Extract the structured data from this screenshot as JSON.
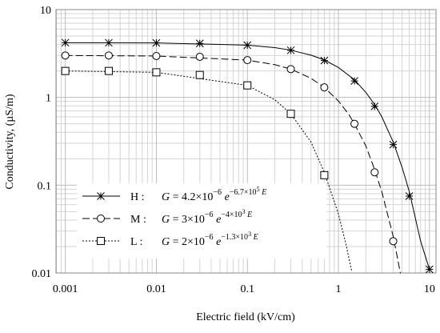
{
  "chart_data": {
    "type": "line",
    "x_label": "Electric field (kV/cm)",
    "y_label": "Conductivity, (µS/m)",
    "x_log": true,
    "y_log": true,
    "grid": true,
    "minor_grid": true,
    "xlim": [
      0.00079,
      11.8
    ],
    "ylim": [
      0.01,
      10
    ],
    "xticks": [
      0.001,
      0.01,
      0.1,
      1,
      10
    ],
    "yticks": [
      0.01,
      0.1,
      1,
      10
    ],
    "x": [
      0.001,
      0.003,
      0.01,
      0.03,
      0.1,
      0.3,
      0.7,
      1.5,
      2.5,
      4,
      6,
      10
    ],
    "legend": "lower left",
    "series": [
      {
        "name": "H :",
        "color": "#000000",
        "line": "solid",
        "marker": "star",
        "values": [
          4.2,
          4.19,
          4.17,
          4.12,
          3.93,
          3.44,
          2.63,
          1.54,
          0.79,
          0.29,
          0.075,
          0.011
        ],
        "curve_x": [
          0.001,
          0.01,
          0.1,
          0.2,
          0.3,
          0.5,
          0.7,
          1,
          1.5,
          2,
          2.5,
          3,
          4,
          5,
          6,
          8,
          10
        ],
        "curve_values": [
          4.2,
          4.17,
          3.94,
          3.69,
          3.45,
          3.03,
          2.67,
          2.19,
          1.59,
          1.14,
          0.83,
          0.6,
          0.31,
          0.16,
          0.085,
          0.023,
          0.011
        ],
        "equation": [
          {
            "t": "G",
            "i": true
          },
          {
            "t": " = 4.2×10"
          },
          {
            "t": "−6",
            "s": 1
          },
          {
            "t": " e",
            "i": true
          },
          {
            "t": "−6.7×10",
            "s": 1
          },
          {
            "t": "5",
            "s": 2
          },
          {
            "t": " E",
            "s": 1,
            "i": true
          }
        ]
      },
      {
        "name": "M :",
        "color": "#000000",
        "line": "dashed",
        "marker": "circle",
        "values": [
          3.0,
          3.0,
          2.96,
          2.9,
          2.66,
          2.1,
          1.3,
          0.5,
          0.14,
          0.023,
          null,
          null
        ],
        "curve_x": [
          0.001,
          0.01,
          0.1,
          0.2,
          0.3,
          0.5,
          0.7,
          1,
          1.3,
          1.5,
          2,
          2.5,
          3,
          4,
          4.8
        ],
        "curve_values": [
          3.0,
          2.96,
          2.66,
          2.36,
          2.1,
          1.65,
          1.3,
          0.91,
          0.64,
          0.5,
          0.28,
          0.15,
          0.084,
          0.026,
          0.0099
        ],
        "equation": [
          {
            "t": "G",
            "i": true
          },
          {
            "t": " = 3×10"
          },
          {
            "t": "−6",
            "s": 1
          },
          {
            "t": " e",
            "i": true
          },
          {
            "t": "−4×10",
            "s": 1
          },
          {
            "t": "3",
            "s": 2
          },
          {
            "t": " E",
            "s": 1,
            "i": true
          }
        ]
      },
      {
        "name": "L :",
        "color": "#000000",
        "line": "dotted",
        "marker": "square",
        "values": [
          2.0,
          2.0,
          1.93,
          1.8,
          1.37,
          0.65,
          0.13,
          null,
          null,
          null,
          null,
          null
        ],
        "curve_x": [
          0.001,
          0.01,
          0.1,
          0.2,
          0.3,
          0.5,
          0.7,
          1,
          1.2,
          1.4
        ],
        "curve_values": [
          2.0,
          1.93,
          1.37,
          0.94,
          0.65,
          0.31,
          0.14,
          0.047,
          0.022,
          0.0105
        ],
        "equation": [
          {
            "t": "G",
            "i": true
          },
          {
            "t": " = 2×10"
          },
          {
            "t": "−6",
            "s": 1
          },
          {
            "t": " e",
            "i": true
          },
          {
            "t": "−1.3×10",
            "s": 1
          },
          {
            "t": "3",
            "s": 2
          },
          {
            "t": " E",
            "s": 1,
            "i": true
          }
        ]
      }
    ]
  }
}
